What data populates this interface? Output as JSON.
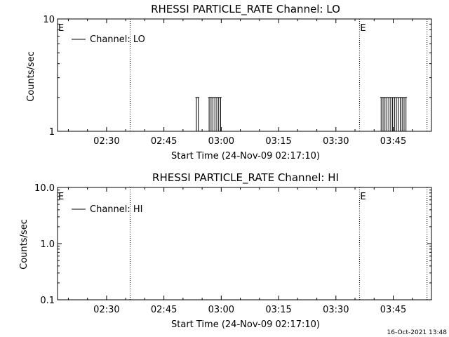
{
  "stamp": "16-Oct-2021 13:48",
  "chart_data": [
    {
      "type": "line",
      "title": "RHESSI PARTICLE_RATE Channel: LO",
      "xlabel": "Start Time (24-Nov-09 02:17:10)",
      "ylabel": "Counts/sec",
      "y_scale": "log",
      "ylim": [
        1,
        10
      ],
      "yticks": [
        "1",
        "10"
      ],
      "xlim": [
        "02:17:10",
        "03:55:00"
      ],
      "xticks": [
        "02:30",
        "02:45",
        "03:00",
        "03:15",
        "03:30",
        "03:45"
      ],
      "legend": {
        "placement": "top-left",
        "label": "Channel: LO"
      },
      "event_markers": [
        {
          "time": "02:17:10",
          "label": "E"
        },
        {
          "time": "02:36:10",
          "label": ""
        },
        {
          "time": "03:36:10",
          "label": "E"
        },
        {
          "time": "03:53:50",
          "label": ""
        }
      ],
      "series": [
        {
          "name": "Channel: LO",
          "spikes": [
            "02:53:30",
            "02:54:00",
            "02:56:50",
            "02:57:20",
            "02:57:50",
            "02:58:20",
            "02:58:50",
            "02:59:20",
            "02:59:50",
            "03:41:50",
            "03:42:20",
            "03:42:50",
            "03:43:20",
            "03:43:50",
            "03:44:20",
            "03:44:50",
            "03:45:20",
            "03:45:50",
            "03:46:20",
            "03:46:50",
            "03:47:20",
            "03:47:50",
            "03:48:20"
          ],
          "baseline": 1,
          "peak": 2
        }
      ]
    },
    {
      "type": "line",
      "title": "RHESSI PARTICLE_RATE Channel: HI",
      "xlabel": "Start Time (24-Nov-09 02:17:10)",
      "ylabel": "Counts/sec",
      "y_scale": "log",
      "ylim": [
        0.1,
        10
      ],
      "yticks": [
        "0.1",
        "1.0",
        "10.0"
      ],
      "xlim": [
        "02:17:10",
        "03:55:00"
      ],
      "xticks": [
        "02:30",
        "02:45",
        "03:00",
        "03:15",
        "03:30",
        "03:45"
      ],
      "legend": {
        "placement": "top-left",
        "label": "Channel: HI"
      },
      "event_markers": [
        {
          "time": "02:17:10",
          "label": "E"
        },
        {
          "time": "02:36:10",
          "label": ""
        },
        {
          "time": "03:36:10",
          "label": "E"
        },
        {
          "time": "03:53:50",
          "label": ""
        }
      ],
      "series": [
        {
          "name": "Channel: HI",
          "spikes": [],
          "baseline": null,
          "peak": null
        }
      ]
    }
  ]
}
